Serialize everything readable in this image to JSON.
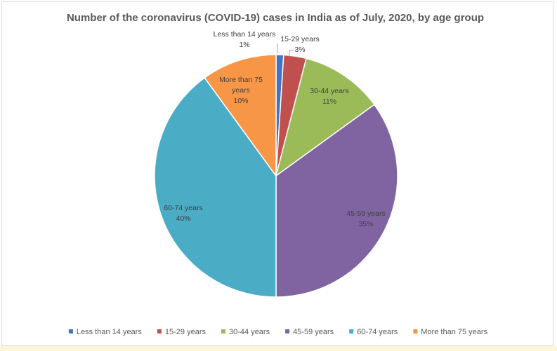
{
  "chart_data": {
    "type": "pie",
    "title": "Number of the coronavirus (COVID-19) cases in India as of July, 2020, by age group",
    "categories": [
      "Less than 14 years",
      "15-29 years",
      "30-44 years",
      "45-59 years",
      "60-74 years",
      "More than 75 years"
    ],
    "values": [
      1,
      3,
      11,
      35,
      40,
      10
    ],
    "value_labels": [
      "1%",
      "3%",
      "11%",
      "35%",
      "40%",
      "10%"
    ],
    "unit": "%",
    "colors": [
      "#4472c4",
      "#c0504d",
      "#9bbb59",
      "#8064a2",
      "#4bacc6",
      "#f79646"
    ],
    "legend_position": "bottom"
  }
}
